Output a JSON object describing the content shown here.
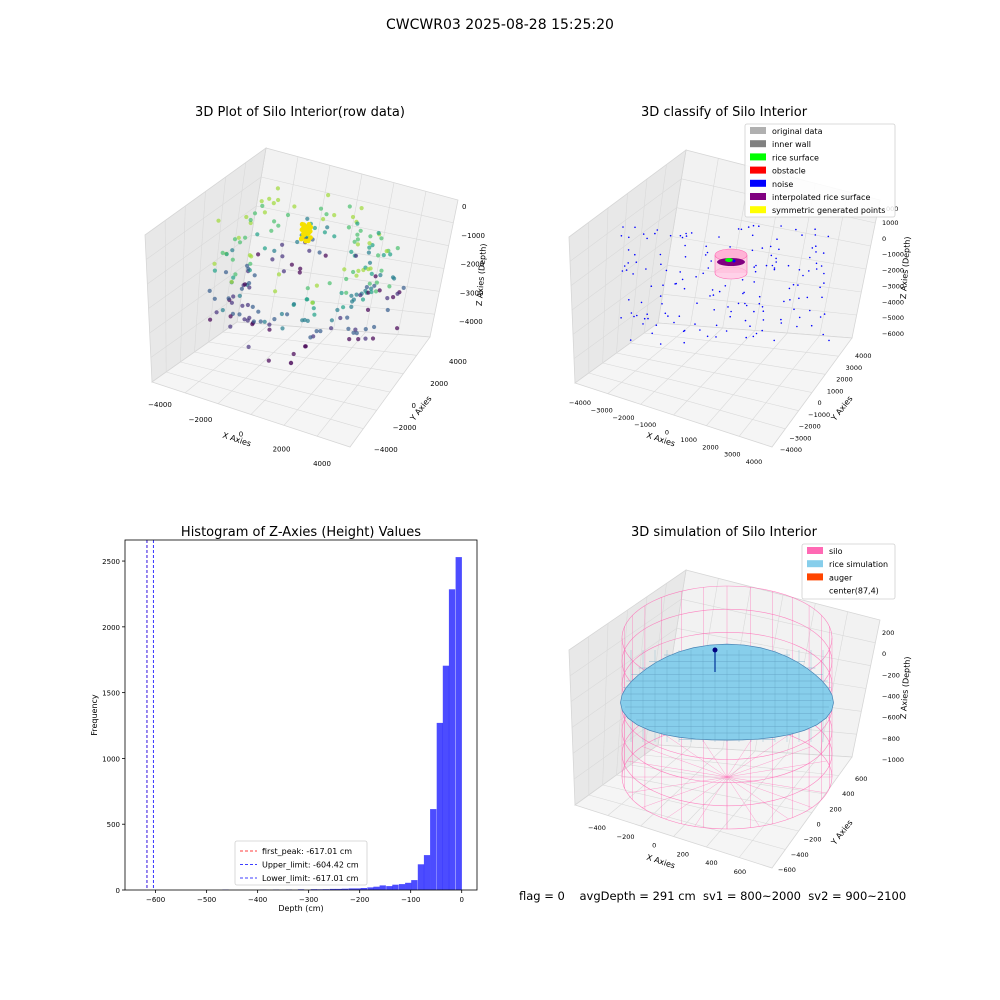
{
  "figure": {
    "suptitle": "CWCWR03 2025-08-28 15:25:20",
    "status_line": "flag = 0    avgDepth = 291 cm  sv1 = 800~2000  sv2 = 900~2100"
  },
  "chart_data": [
    {
      "type": "scatter",
      "title": "3D Plot of Silo Interior(row data)",
      "xlabel": "X Axies",
      "ylabel": "Y Axies",
      "zlabel": "Z Axies (Depth)",
      "xticks": [
        "−4000",
        "−2000",
        "0",
        "2000",
        "4000"
      ],
      "yticks": [
        "−4000",
        "−2000",
        "0",
        "2000",
        "4000"
      ],
      "zticks": [
        "0",
        "−1000",
        "−2000",
        "−3000",
        "−4000"
      ],
      "colormap": "viridis",
      "grid": true
    },
    {
      "type": "scatter",
      "title": "3D classify of Silo Interior",
      "xlabel": "X Axies",
      "ylabel": "Y Axies",
      "zlabel": "Z Axies (Depth)",
      "xticks": [
        "−4000",
        "−3000",
        "−2000",
        "−1000",
        "0",
        "1000",
        "2000",
        "3000",
        "4000"
      ],
      "yticks": [
        "−4000",
        "−3000",
        "−2000",
        "−1000",
        "0",
        "1000",
        "2000",
        "3000",
        "4000"
      ],
      "zticks": [
        "1000",
        "0",
        "−1000",
        "−2000",
        "−3000",
        "−4000",
        "−5000",
        "−6000"
      ],
      "z_partial_tick": "000",
      "legend_position": "top-right",
      "legend": [
        {
          "label": "original data",
          "color": "#b0b0b0"
        },
        {
          "label": "inner wall",
          "color": "#808080"
        },
        {
          "label": "rice surface",
          "color": "#00ff00"
        },
        {
          "label": "obstacle",
          "color": "#ff0000"
        },
        {
          "label": "noise",
          "color": "#0000ff"
        },
        {
          "label": "interpolated rice surface",
          "color": "#800080"
        },
        {
          "label": "symmetric generated points",
          "color": "#ffff00"
        }
      ],
      "grid": true
    },
    {
      "type": "bar",
      "subtype": "histogram",
      "title": "Histogram of Z-Axies (Height) Values",
      "xlabel": "Depth (cm)",
      "ylabel": "Frequency",
      "xlim": [
        -660,
        30
      ],
      "ylim": [
        0,
        2660
      ],
      "xticks": [
        -600,
        -500,
        -400,
        -300,
        -200,
        -100,
        0
      ],
      "xtick_labels": [
        "−600",
        "−500",
        "−400",
        "−300",
        "−200",
        "−100",
        "0"
      ],
      "yticks": [
        0,
        500,
        1000,
        1500,
        2000,
        2500
      ],
      "yticks_labels": [
        "0",
        "500",
        "1000",
        "1500",
        "2000",
        "2500"
      ],
      "bar_color": "#0000ff",
      "bin_width": 12.34,
      "bins": [
        {
          "x": -469,
          "y": 3
        },
        {
          "x": -395,
          "y": 2
        },
        {
          "x": -370,
          "y": 3
        },
        {
          "x": -345,
          "y": 4
        },
        {
          "x": -321,
          "y": 5
        },
        {
          "x": -296,
          "y": 6
        },
        {
          "x": -284,
          "y": 5
        },
        {
          "x": -272,
          "y": 6
        },
        {
          "x": -259,
          "y": 8
        },
        {
          "x": -247,
          "y": 8
        },
        {
          "x": -235,
          "y": 10
        },
        {
          "x": -222,
          "y": 12
        },
        {
          "x": -210,
          "y": 12
        },
        {
          "x": -198,
          "y": 15
        },
        {
          "x": -185,
          "y": 20
        },
        {
          "x": -173,
          "y": 25
        },
        {
          "x": -161,
          "y": 35
        },
        {
          "x": -148,
          "y": 30
        },
        {
          "x": -136,
          "y": 40
        },
        {
          "x": -123,
          "y": 45
        },
        {
          "x": -111,
          "y": 55
        },
        {
          "x": -99,
          "y": 75
        },
        {
          "x": -86,
          "y": 195
        },
        {
          "x": -74,
          "y": 265
        },
        {
          "x": -62,
          "y": 615
        },
        {
          "x": -49,
          "y": 1270
        },
        {
          "x": -37,
          "y": 1705
        },
        {
          "x": -25,
          "y": 2285
        },
        {
          "x": -12,
          "y": 2530
        }
      ],
      "vlines": [
        {
          "label": "first_peak: -617.01 cm",
          "x": -617.01,
          "color": "#ff0000"
        },
        {
          "label": "Upper_limit: -604.42 cm",
          "x": -604.42,
          "color": "#0000ff"
        },
        {
          "label": "Lower_limit: -617.01 cm",
          "x": -617.01,
          "color": "#0000ff"
        }
      ],
      "legend_position": "lower-center"
    },
    {
      "type": "area",
      "subtype": "3d-surface",
      "title": "3D simulation of Silo Interior",
      "xlabel": "X Axies",
      "ylabel": "Y Axies",
      "zlabel": "Z Axies (Depth)",
      "xticks": [
        "−400",
        "−200",
        "0",
        "200",
        "400",
        "600"
      ],
      "yticks": [
        "−600",
        "−400",
        "−200",
        "0",
        "200",
        "400",
        "600"
      ],
      "zticks": [
        "200",
        "0",
        "−200",
        "−400",
        "−600",
        "−800",
        "−1000"
      ],
      "legend_position": "top-right",
      "legend": [
        {
          "label": "silo",
          "color": "#ff69b4"
        },
        {
          "label": "rice simulation",
          "color": "#87ceeb"
        },
        {
          "label": "auger",
          "color": "#ff4500"
        },
        {
          "label": "center(87,4)",
          "color": ""
        }
      ],
      "grid": true
    }
  ]
}
